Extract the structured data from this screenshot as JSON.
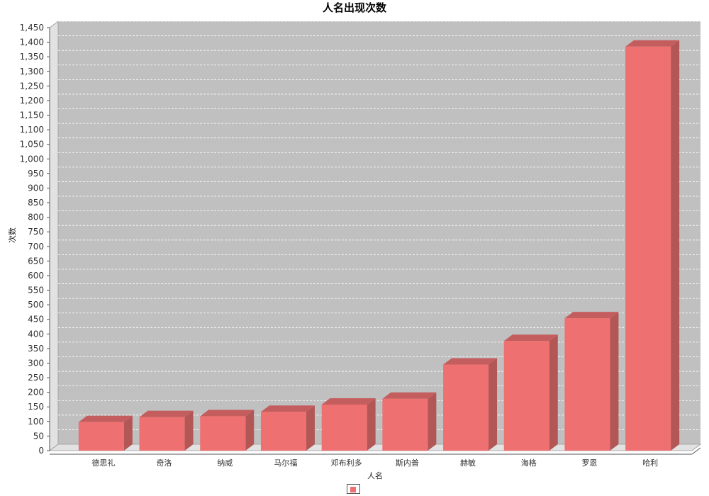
{
  "chart_data": {
    "type": "bar",
    "title": "人名出现次数",
    "xlabel": "人名",
    "ylabel": "次数",
    "categories": [
      "德思礼",
      "奇洛",
      "纳威",
      "马尔福",
      "邓布利多",
      "斯内普",
      "赫敏",
      "海格",
      "罗恩",
      "哈利"
    ],
    "series": [
      {
        "values": [
          98,
          115,
          118,
          133,
          158,
          178,
          295,
          376,
          454,
          1385
        ]
      }
    ],
    "ylim": [
      0,
      1450
    ],
    "ytick_step": 50,
    "grid": true,
    "render_3d": true,
    "legend": "bottom-center",
    "colors": {
      "bar_front": "#ee7070",
      "bar_side": "#b35656",
      "bar_top": "#c45e5e",
      "plot_background": "#c0c0c0",
      "plot_wall": "#e2e2e2",
      "gridline": "#ffffff"
    }
  }
}
